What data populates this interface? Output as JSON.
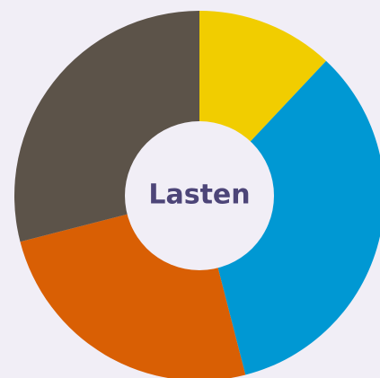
{
  "chart_data": {
    "type": "donut",
    "center_label": "Lasten",
    "values": [
      12,
      34,
      25,
      29
    ],
    "colors": [
      "#f1cd00",
      "#0098d3",
      "#d95f04",
      "#5c5349"
    ]
  }
}
